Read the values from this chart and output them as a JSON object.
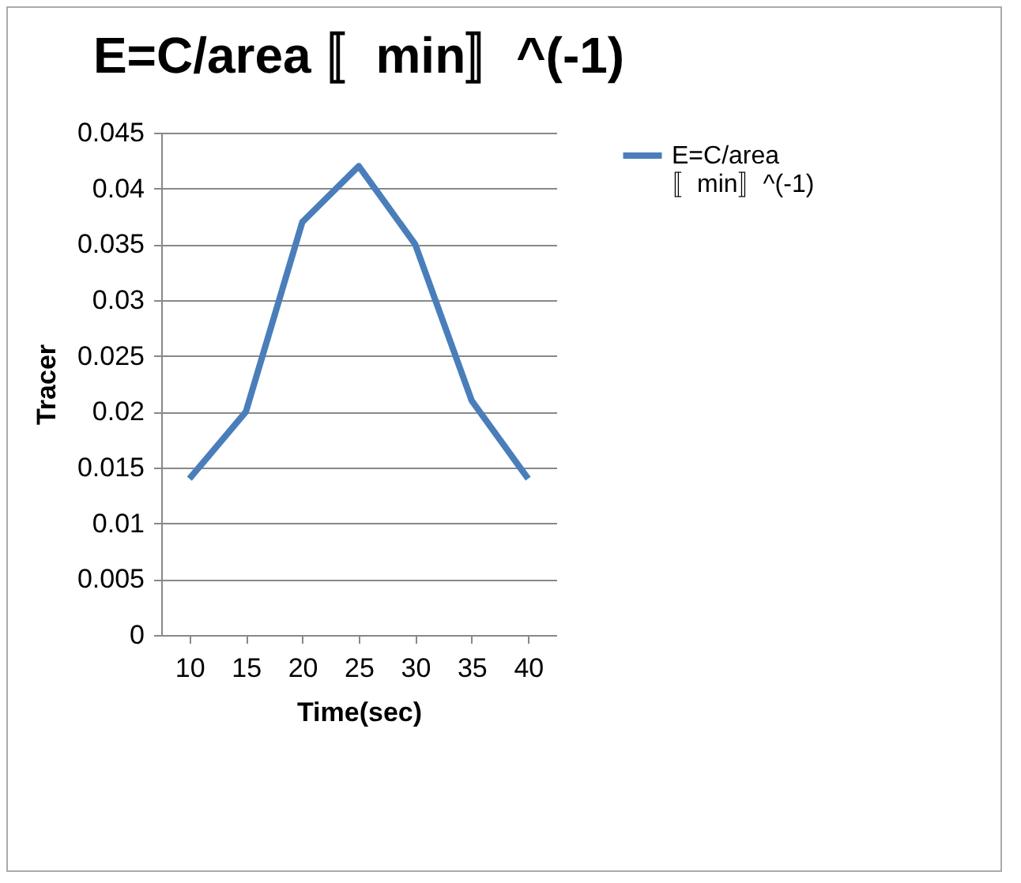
{
  "chart_data": {
    "type": "line",
    "title": "E=C/area 〚min〛^(-1)",
    "xlabel": "Time(sec)",
    "ylabel": "Tracer",
    "categories": [
      "10",
      "15",
      "20",
      "25",
      "30",
      "35",
      "40"
    ],
    "series": [
      {
        "name": "E=C/area 〚min〛^(-1)",
        "color": "#4a7ebb",
        "values": [
          0.014,
          0.02,
          0.037,
          0.042,
          0.035,
          0.021,
          0.014
        ]
      }
    ],
    "ylim": [
      0,
      0.045
    ],
    "yticks": [
      0,
      0.005,
      0.01,
      0.015,
      0.02,
      0.025,
      0.03,
      0.035,
      0.04,
      0.045
    ],
    "grid": "y",
    "legend": "right",
    "marker": "none",
    "line_style": "solid"
  }
}
